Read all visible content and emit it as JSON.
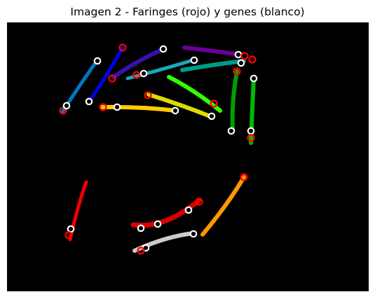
{
  "figure": {
    "title": "Imagen 2 - Faringes (rojo) y genes (blanco)"
  },
  "image_data": {
    "type": "segmentation-overlay",
    "background_color": "#000000",
    "pharynx_marker_color": "#ff0000",
    "gene_marker_color": "#ffffff",
    "worm_colors": [
      "#0077c2",
      "#0000ee",
      "#3a10a8",
      "#6a0094",
      "#009a8a",
      "#1aa8b8",
      "#33ff00",
      "#00a000",
      "#00bb00",
      "#dddd00",
      "#ffcc00",
      "#ee0000",
      "#dd0000",
      "#ff9900",
      "#cccccc"
    ],
    "worm_count": 15
  }
}
